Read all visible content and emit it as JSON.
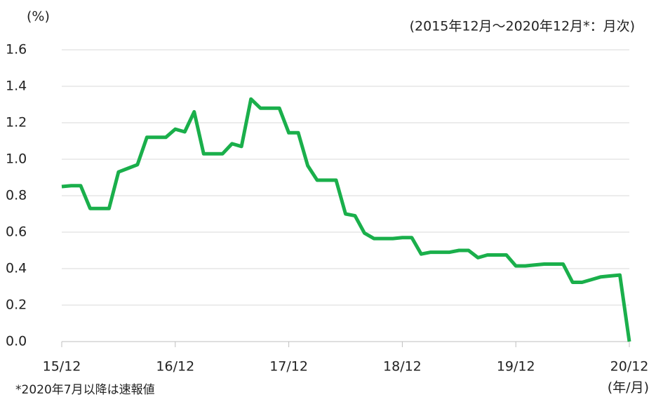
{
  "chart_data": {
    "type": "line",
    "y_unit": "(%)",
    "subtitle": "(2015年12月～2020年12月*：月次)",
    "note": "*2020年7月以降は速報値",
    "x_unit": "(年/月)",
    "categories": [
      "15/12",
      null,
      null,
      null,
      null,
      null,
      null,
      null,
      null,
      null,
      null,
      null,
      "16/12",
      null,
      null,
      null,
      null,
      null,
      null,
      null,
      null,
      null,
      null,
      null,
      "17/12",
      null,
      null,
      null,
      null,
      null,
      null,
      null,
      null,
      null,
      null,
      null,
      "18/12",
      null,
      null,
      null,
      null,
      null,
      null,
      null,
      null,
      null,
      null,
      null,
      "19/12",
      null,
      null,
      null,
      null,
      null,
      null,
      null,
      null,
      null,
      null,
      null,
      "20/12"
    ],
    "series": [
      {
        "color": "#1aaf4b",
        "values": [
          0.85,
          0.855,
          0.855,
          0.73,
          0.73,
          0.73,
          0.93,
          0.95,
          0.97,
          1.12,
          1.12,
          1.12,
          1.165,
          1.15,
          1.26,
          1.03,
          1.03,
          1.03,
          1.085,
          1.07,
          1.33,
          1.28,
          1.28,
          1.28,
          1.145,
          1.145,
          0.965,
          0.885,
          0.885,
          0.885,
          0.7,
          0.69,
          0.595,
          0.565,
          0.565,
          0.565,
          0.57,
          0.57,
          0.48,
          0.49,
          0.49,
          0.49,
          0.5,
          0.5,
          0.46,
          0.475,
          0.475,
          0.475,
          0.415,
          0.415,
          0.42,
          0.425,
          0.425,
          0.425,
          0.325,
          0.325,
          0.34,
          0.355,
          0.36,
          0.365,
          0
        ]
      }
    ],
    "ylim": [
      0,
      1.6
    ],
    "yticks": [
      {
        "value": 0,
        "label": "0.0"
      },
      0.2,
      0.4,
      0.6,
      0.8,
      {
        "value": 1,
        "label": "1.0"
      },
      1.2,
      1.4,
      1.6
    ],
    "grid": true
  }
}
